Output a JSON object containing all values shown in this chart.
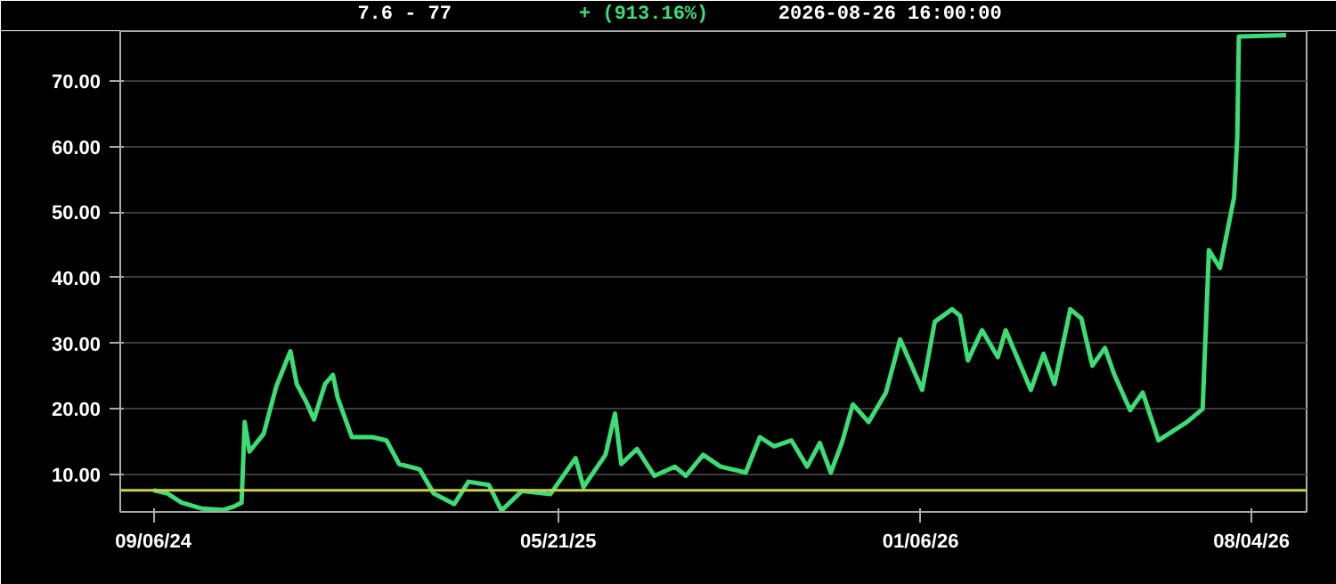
{
  "chart_data": {
    "type": "line",
    "title": "7.6 - 77",
    "subtitle": "+ (913.16%)",
    "annotations": [
      "2026-08-26  16:00:00"
    ],
    "x": [
      "2024-09-06",
      "2024-09-15",
      "2024-09-24",
      "2024-10-07",
      "2024-10-20",
      "2024-10-27",
      "2024-11-01",
      "2024-11-03",
      "2024-11-06",
      "2024-11-15",
      "2024-11-23",
      "2024-12-02",
      "2024-12-06",
      "2024-12-12",
      "2024-12-17",
      "2024-12-24",
      "2024-12-29",
      "2025-01-01",
      "2025-01-10",
      "2025-01-23",
      "2025-02-01",
      "2025-02-09",
      "2025-02-22",
      "2025-03-03",
      "2025-03-16",
      "2025-03-25",
      "2025-04-07",
      "2025-04-15",
      "2025-04-28",
      "2025-05-16",
      "2025-06-01",
      "2025-06-06",
      "2025-06-20",
      "2025-06-26",
      "2025-06-30",
      "2025-07-10",
      "2025-07-21",
      "2025-08-03",
      "2025-08-10",
      "2025-08-21",
      "2025-09-01",
      "2025-09-17",
      "2025-09-26",
      "2025-10-05",
      "2025-10-16",
      "2025-10-26",
      "2025-11-03",
      "2025-11-10",
      "2025-11-17",
      "2025-11-24",
      "2025-12-04",
      "2025-12-15",
      "2025-12-24",
      "2026-01-07",
      "2026-01-15",
      "2026-01-26",
      "2026-01-31",
      "2026-02-05",
      "2026-02-14",
      "2026-02-24",
      "2026-03-01",
      "2026-03-17",
      "2026-03-25",
      "2026-04-01",
      "2026-04-11",
      "2026-04-18",
      "2026-04-25",
      "2026-05-03",
      "2026-05-09",
      "2026-05-19",
      "2026-05-27",
      "2026-06-06",
      "2026-06-24",
      "2026-07-04",
      "2026-07-08",
      "2026-07-15",
      "2026-07-24",
      "2026-07-26",
      "2026-07-27",
      "2026-08-26"
    ],
    "series": [
      {
        "color": "#3ddc75",
        "values": [
          7.6,
          7.1,
          5.7,
          4.8,
          4.6,
          5.1,
          5.7,
          18.0,
          13.5,
          16.2,
          23.4,
          28.8,
          23.8,
          21.1,
          18.4,
          23.8,
          25.2,
          21.7,
          15.7,
          15.7,
          15.2,
          11.6,
          10.8,
          7.1,
          5.5,
          8.9,
          8.4,
          4.5,
          7.5,
          7.0,
          12.5,
          8.1,
          13.0,
          19.3,
          11.6,
          13.9,
          9.8,
          11.2,
          9.8,
          13.0,
          11.2,
          10.3,
          15.7,
          14.3,
          15.2,
          11.2,
          14.8,
          10.3,
          14.8,
          20.7,
          18.0,
          22.5,
          30.6,
          22.9,
          33.3,
          35.2,
          34.2,
          27.4,
          32.0,
          27.9,
          32.0,
          22.9,
          28.4,
          23.8,
          35.2,
          33.8,
          26.6,
          29.3,
          25.2,
          19.8,
          22.5,
          15.2,
          18.0,
          20.0,
          44.2,
          41.5,
          52.3,
          61.4,
          76.8,
          77
        ]
      }
    ],
    "xlim": [
      "2024-08-16",
      "2026-09-08"
    ],
    "xticks": [
      {
        "value": "2024-09-06",
        "label": "09/06/24"
      },
      {
        "value": "2025-05-21",
        "label": "05/21/25"
      },
      {
        "value": "2026-01-06",
        "label": "01/06/26"
      },
      {
        "value": "2026-08-04",
        "label": "08/04/26"
      }
    ],
    "ylim": [
      4.3,
      77.6
    ],
    "yticks": [
      {
        "value": 10,
        "label": "10.00"
      },
      {
        "value": 20,
        "label": "20.00"
      },
      {
        "value": 30,
        "label": "30.00"
      },
      {
        "value": 40,
        "label": "40.00"
      },
      {
        "value": 50,
        "label": "50.00"
      },
      {
        "value": 60,
        "label": "60.00"
      },
      {
        "value": 70,
        "label": "70.00"
      }
    ],
    "ref_lines": [
      {
        "axis": "y",
        "value": 7.6,
        "color": "#c8d050"
      }
    ],
    "grid": "y",
    "line_style": "solid"
  }
}
